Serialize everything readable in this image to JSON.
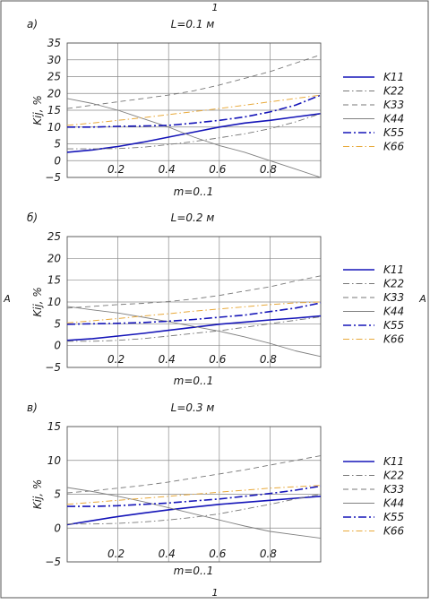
{
  "page": {
    "top_mark": "1",
    "bottom_mark": "1",
    "left_mark": "A",
    "right_mark": "A"
  },
  "chart_data": [
    {
      "type": "line",
      "panel_label": "a)",
      "title": "L=0.1 м",
      "xlabel": "m=0..1",
      "ylabel": "Kij, %",
      "xlim": [
        0,
        1
      ],
      "ylim": [
        -5,
        35
      ],
      "yticks": [
        -5,
        0,
        5,
        10,
        15,
        20,
        25,
        30,
        35
      ],
      "yticklabels": [
        "−5",
        "0",
        "5",
        "10",
        "15",
        "20",
        "25",
        "30",
        "35"
      ],
      "xticks": [
        0.2,
        0.4,
        0.6,
        0.8
      ],
      "xticklabels": [
        "0.2",
        "0.4",
        "0.6",
        "0.8"
      ],
      "grid": true,
      "legend": "right",
      "x": [
        0,
        0.1,
        0.2,
        0.3,
        0.4,
        0.5,
        0.6,
        0.7,
        0.8,
        0.9,
        1.0
      ],
      "series": [
        {
          "name": "K11",
          "values": [
            2.5,
            3.2,
            4.2,
            5.5,
            7.0,
            8.5,
            10.0,
            11.2,
            12.0,
            13.0,
            14.0
          ]
        },
        {
          "name": "K22",
          "values": [
            3.5,
            3.5,
            3.6,
            4.0,
            4.8,
            5.7,
            6.8,
            8.0,
            9.5,
            11.5,
            14.0
          ]
        },
        {
          "name": "K33",
          "values": [
            15.5,
            16.5,
            17.5,
            18.5,
            19.5,
            20.8,
            22.5,
            24.5,
            26.5,
            29.0,
            31.5
          ]
        },
        {
          "name": "K44",
          "values": [
            18.5,
            17.0,
            15.0,
            12.5,
            10.0,
            7.0,
            4.5,
            2.5,
            0.0,
            -2.5,
            -5.0
          ]
        },
        {
          "name": "K55",
          "values": [
            10.0,
            10.0,
            10.2,
            10.3,
            10.5,
            11.2,
            12.0,
            13.0,
            14.5,
            16.5,
            19.5
          ]
        },
        {
          "name": "K66",
          "values": [
            10.5,
            11.2,
            12.0,
            12.8,
            13.7,
            14.6,
            15.5,
            16.5,
            17.5,
            18.5,
            19.5
          ]
        }
      ]
    },
    {
      "type": "line",
      "panel_label": "б)",
      "title": "L=0.2 м",
      "xlabel": "m=0..1",
      "ylabel": "Kij, %",
      "xlim": [
        0,
        1
      ],
      "ylim": [
        -5,
        25
      ],
      "yticks": [
        -5,
        0,
        5,
        10,
        15,
        20,
        25
      ],
      "yticklabels": [
        "−5",
        "0",
        "5",
        "10",
        "15",
        "20",
        "25"
      ],
      "xticks": [
        0.2,
        0.4,
        0.6,
        0.8
      ],
      "xticklabels": [
        "0.2",
        "0.4",
        "0.6",
        "0.8"
      ],
      "grid": true,
      "legend": "right",
      "x": [
        0,
        0.1,
        0.2,
        0.3,
        0.4,
        0.5,
        0.6,
        0.7,
        0.8,
        0.9,
        1.0
      ],
      "series": [
        {
          "name": "K11",
          "values": [
            1.2,
            1.6,
            2.2,
            2.8,
            3.5,
            4.2,
            4.9,
            5.4,
            5.9,
            6.3,
            6.8
          ]
        },
        {
          "name": "K22",
          "values": [
            1.0,
            1.0,
            1.2,
            1.6,
            2.2,
            2.8,
            3.4,
            4.2,
            5.0,
            5.8,
            6.6
          ]
        },
        {
          "name": "K33",
          "values": [
            8.6,
            9.0,
            9.4,
            9.7,
            10.1,
            10.7,
            11.5,
            12.5,
            13.5,
            14.8,
            16.0
          ]
        },
        {
          "name": "K44",
          "values": [
            9.0,
            8.2,
            7.5,
            6.5,
            5.5,
            4.4,
            3.3,
            2.0,
            0.5,
            -1.2,
            -2.5
          ]
        },
        {
          "name": "K55",
          "values": [
            4.9,
            5.0,
            5.1,
            5.3,
            5.6,
            6.0,
            6.5,
            7.0,
            7.8,
            8.6,
            9.8
          ]
        },
        {
          "name": "K66",
          "values": [
            5.2,
            5.7,
            6.2,
            6.8,
            7.3,
            7.9,
            8.4,
            8.9,
            9.4,
            9.8,
            10.0
          ]
        }
      ]
    },
    {
      "type": "line",
      "panel_label": "в)",
      "title": "L=0.3 м",
      "xlabel": "m=0..1",
      "ylabel": "Kij, %",
      "xlim": [
        0,
        1
      ],
      "ylim": [
        -5,
        15
      ],
      "yticks": [
        -5,
        0,
        5,
        10,
        15
      ],
      "yticklabels": [
        "−5",
        "0",
        "5",
        "10",
        "15"
      ],
      "xticks": [
        0.2,
        0.4,
        0.6,
        0.8
      ],
      "xticklabels": [
        "0.2",
        "0.4",
        "0.6",
        "0.8"
      ],
      "grid": true,
      "legend": "right",
      "x": [
        0,
        0.1,
        0.2,
        0.3,
        0.4,
        0.5,
        0.6,
        0.7,
        0.8,
        0.9,
        1.0
      ],
      "series": [
        {
          "name": "K11",
          "values": [
            0.5,
            1.1,
            1.7,
            2.2,
            2.7,
            3.1,
            3.5,
            3.8,
            4.1,
            4.4,
            4.7
          ]
        },
        {
          "name": "K22",
          "values": [
            0.6,
            0.6,
            0.7,
            0.9,
            1.2,
            1.6,
            2.1,
            2.8,
            3.5,
            4.3,
            5.0
          ]
        },
        {
          "name": "K33",
          "values": [
            5.2,
            5.5,
            5.9,
            6.3,
            6.8,
            7.4,
            8.0,
            8.6,
            9.3,
            10.0,
            10.7
          ]
        },
        {
          "name": "K44",
          "values": [
            6.0,
            5.4,
            4.7,
            3.9,
            3.0,
            2.1,
            1.2,
            0.3,
            -0.5,
            -1.0,
            -1.5
          ]
        },
        {
          "name": "K55",
          "values": [
            3.2,
            3.2,
            3.3,
            3.5,
            3.7,
            4.0,
            4.3,
            4.7,
            5.1,
            5.6,
            6.2
          ]
        },
        {
          "name": "K66",
          "values": [
            3.5,
            3.8,
            4.1,
            4.4,
            4.7,
            5.0,
            5.3,
            5.6,
            5.9,
            6.1,
            6.3
          ]
        }
      ]
    }
  ]
}
